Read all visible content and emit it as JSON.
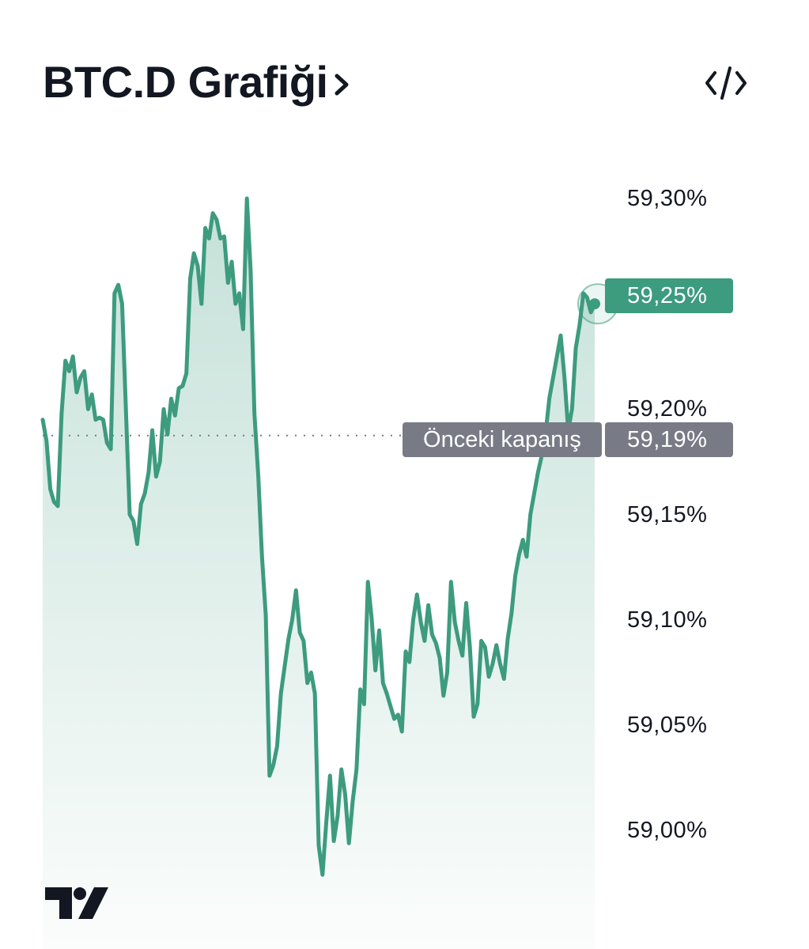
{
  "header": {
    "title": "BTC.D Grafiği",
    "chevron_icon": "chevron-right-icon",
    "embed_icon": "code-embed-icon"
  },
  "colors": {
    "line": "#3d9b7e",
    "fill_top": "#3d9b7e",
    "prev_close_tag": "#787b86",
    "last_price_tag": "#3d9b7e",
    "text": "#131722"
  },
  "brand": {
    "logo_icon": "tradingview-logo-icon"
  },
  "prev_close": {
    "label": "Önceki kapanış",
    "value_label": "59,19%"
  },
  "last_price": {
    "value_label": "59,25%"
  },
  "chart_data": {
    "type": "area",
    "title": "BTC.D Grafiği",
    "ylim": [
      58.975,
      59.315
    ],
    "yticks": [
      59.3,
      59.25,
      59.2,
      59.15,
      59.1,
      59.05,
      59.0
    ],
    "ytick_labels": [
      "59,30%",
      "59,25%",
      "59,20%",
      "59,15%",
      "59,10%",
      "59,05%",
      "59,00%"
    ],
    "visible_ytick_labels": [
      "59,30%",
      "59,20%",
      "59,15%",
      "59,10%",
      "59,05%",
      "59,00%"
    ],
    "prev_close": 59.1875,
    "last_value": 59.25,
    "grid": false,
    "y_axis_position": "right",
    "values": [
      59.195,
      59.185,
      59.162,
      59.156,
      59.154,
      59.198,
      59.223,
      59.218,
      59.225,
      59.208,
      59.215,
      59.218,
      59.2,
      59.207,
      59.195,
      59.196,
      59.195,
      59.184,
      59.181,
      59.255,
      59.259,
      59.25,
      59.2,
      59.15,
      59.147,
      59.136,
      59.155,
      59.16,
      59.17,
      59.19,
      59.168,
      59.175,
      59.2,
      59.188,
      59.205,
      59.197,
      59.21,
      59.211,
      59.217,
      59.262,
      59.274,
      59.268,
      59.25,
      59.286,
      59.281,
      59.293,
      59.29,
      59.281,
      59.282,
      59.26,
      59.27,
      59.25,
      59.255,
      59.238,
      59.3,
      59.266,
      59.198,
      59.169,
      59.13,
      59.102,
      59.026,
      59.031,
      59.04,
      59.065,
      59.078,
      59.091,
      59.1,
      59.114,
      59.094,
      59.09,
      59.07,
      59.075,
      59.065,
      58.993,
      58.979,
      59.004,
      59.026,
      58.995,
      59.007,
      59.029,
      59.017,
      58.994,
      59.014,
      59.029,
      59.067,
      59.06,
      59.118,
      59.101,
      59.076,
      59.095,
      59.07,
      59.065,
      59.059,
      59.053,
      59.055,
      59.047,
      59.085,
      59.08,
      59.1,
      59.112,
      59.099,
      59.09,
      59.107,
      59.093,
      59.089,
      59.082,
      59.064,
      59.075,
      59.118,
      59.099,
      59.09,
      59.083,
      59.108,
      59.087,
      59.054,
      59.06,
      59.09,
      59.087,
      59.073,
      59.079,
      59.088,
      59.079,
      59.072,
      59.091,
      59.103,
      59.121,
      59.131,
      59.138,
      59.13,
      59.15,
      59.16,
      59.17,
      59.178,
      59.188,
      59.205,
      59.215,
      59.225,
      59.235,
      59.215,
      59.19,
      59.2,
      59.229,
      59.24,
      59.255,
      59.253,
      59.246,
      59.25
    ]
  }
}
